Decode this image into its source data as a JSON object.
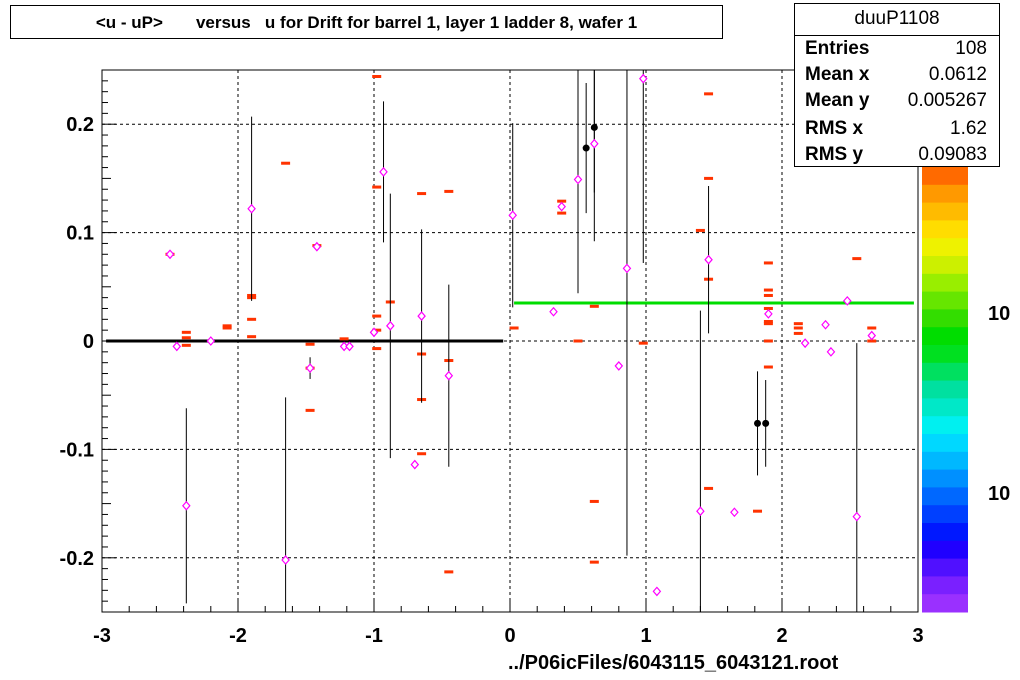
{
  "title": "<u - uP>       versus   u for Drift for barrel 1, layer 1 ladder 8, wafer 1",
  "stats": {
    "name": "duuP1108",
    "rows": [
      {
        "label": "Entries",
        "value": "108"
      },
      {
        "label": "Mean x",
        "value": "0.0612"
      },
      {
        "label": "Mean y",
        "value": "0.005267"
      },
      {
        "label": "RMS x",
        "value": "1.62"
      },
      {
        "label": "RMS y",
        "value": "0.09083"
      }
    ]
  },
  "xlabel": "../P06icFiles/6043115_6043121.root",
  "palette_labels": [
    "10",
    "10"
  ],
  "palette_colors": [
    "#ff6a00",
    "#ff9900",
    "#ffbb00",
    "#ffdd00",
    "#eef200",
    "#ccf000",
    "#99ee00",
    "#66e600",
    "#33dd00",
    "#00dd00",
    "#00e020",
    "#00e060",
    "#00e0a0",
    "#00e8c8",
    "#00f0f0",
    "#00d8ff",
    "#00b8ff",
    "#0090ff",
    "#0068ff",
    "#0040ff",
    "#0018ff",
    "#2000ff",
    "#5010ff",
    "#7a20ff",
    "#9a30ff"
  ],
  "chart_data": {
    "type": "scatter",
    "xlim": [
      -3,
      3
    ],
    "ylim": [
      -0.25,
      0.25
    ],
    "x_ticks": [
      -3,
      -2,
      -1,
      0,
      1,
      2,
      3
    ],
    "y_ticks": [
      -0.2,
      -0.1,
      0,
      0.1,
      0.2
    ],
    "x_tick_labels": [
      "-3",
      "-2",
      "-1",
      "0",
      "1",
      "2",
      "3"
    ],
    "y_tick_labels": [
      "-0.2",
      "-0.1",
      "0",
      "0.1",
      "0.2"
    ],
    "grid": true,
    "fit_lines": [
      {
        "x": [
          -2.97,
          -0.05
        ],
        "y": [
          0.0,
          0.0
        ],
        "color": "#000000"
      },
      {
        "x": [
          0.03,
          2.97
        ],
        "y": [
          0.035,
          0.035
        ],
        "color": "#00dd00"
      }
    ],
    "profile_points": [
      {
        "x": -2.5,
        "y": 0.08,
        "err": 0.0
      },
      {
        "x": -2.45,
        "y": -0.005,
        "err": 0.0
      },
      {
        "x": -2.38,
        "y": -0.152,
        "err": 0.09
      },
      {
        "x": -2.2,
        "y": 0.0,
        "err": 0.0
      },
      {
        "x": -1.9,
        "y": 0.122,
        "err": 0.085
      },
      {
        "x": -1.65,
        "y": -0.202,
        "err": 0.15
      },
      {
        "x": -1.47,
        "y": -0.025,
        "err": 0.01
      },
      {
        "x": -1.42,
        "y": 0.087,
        "err": 0.0
      },
      {
        "x": -1.22,
        "y": -0.005,
        "err": 0.0
      },
      {
        "x": -1.18,
        "y": -0.005,
        "err": 0.0
      },
      {
        "x": -1.0,
        "y": 0.008,
        "err": 0.0
      },
      {
        "x": -0.93,
        "y": 0.156,
        "err": 0.065
      },
      {
        "x": -0.88,
        "y": 0.014,
        "err": 0.122
      },
      {
        "x": -0.7,
        "y": -0.114,
        "err": 0.0
      },
      {
        "x": -0.65,
        "y": 0.023,
        "err": 0.08
      },
      {
        "x": -0.45,
        "y": -0.032,
        "err": 0.084
      },
      {
        "x": 0.02,
        "y": 0.116,
        "err": 0.085
      },
      {
        "x": 0.32,
        "y": 0.027,
        "err": 0.0
      },
      {
        "x": 0.38,
        "y": 0.124,
        "err": 0.0
      },
      {
        "x": 0.5,
        "y": 0.149,
        "err": 0.105
      },
      {
        "x": 0.62,
        "y": 0.182,
        "err": 0.09
      },
      {
        "x": 0.8,
        "y": -0.023,
        "err": 0.0
      },
      {
        "x": 0.86,
        "y": 0.067,
        "err": 0.265
      },
      {
        "x": 0.98,
        "y": 0.242,
        "err": 0.17
      },
      {
        "x": 1.08,
        "y": -0.231,
        "err": 0.0
      },
      {
        "x": 1.4,
        "y": -0.157,
        "err": 0.185
      },
      {
        "x": 1.46,
        "y": 0.075,
        "err": 0.068
      },
      {
        "x": 1.65,
        "y": -0.158,
        "err": 0.0
      },
      {
        "x": 1.9,
        "y": 0.025,
        "err": 0.0
      },
      {
        "x": 2.17,
        "y": -0.002,
        "err": 0.0
      },
      {
        "x": 2.32,
        "y": 0.015,
        "err": 0.0
      },
      {
        "x": 2.36,
        "y": -0.01,
        "err": 0.0
      },
      {
        "x": 2.48,
        "y": 0.037,
        "err": 0.0
      },
      {
        "x": 2.55,
        "y": -0.162,
        "err": 0.16
      },
      {
        "x": 2.66,
        "y": 0.005,
        "err": 0.0
      }
    ],
    "black_points": [
      {
        "x": 0.56,
        "y": 0.178,
        "err": 0.06
      },
      {
        "x": 0.62,
        "y": 0.197,
        "err": 0.06
      },
      {
        "x": 1.82,
        "y": -0.076,
        "err": 0.048
      },
      {
        "x": 1.88,
        "y": -0.076,
        "err": 0.04
      }
    ],
    "red_marks": [
      {
        "x": -2.5,
        "y": 0.08
      },
      {
        "x": -2.38,
        "y": 0.008
      },
      {
        "x": -2.38,
        "y": 0.003
      },
      {
        "x": -2.38,
        "y": -0.004
      },
      {
        "x": -2.08,
        "y": 0.014
      },
      {
        "x": -2.08,
        "y": 0.012
      },
      {
        "x": -1.9,
        "y": 0.042
      },
      {
        "x": -1.9,
        "y": 0.04
      },
      {
        "x": -1.9,
        "y": 0.02
      },
      {
        "x": -1.9,
        "y": 0.004
      },
      {
        "x": -1.65,
        "y": 0.164
      },
      {
        "x": -1.47,
        "y": -0.003
      },
      {
        "x": -1.47,
        "y": -0.025
      },
      {
        "x": -1.47,
        "y": -0.064
      },
      {
        "x": -1.42,
        "y": 0.088
      },
      {
        "x": -1.22,
        "y": 0.002
      },
      {
        "x": -0.98,
        "y": 0.244
      },
      {
        "x": -0.98,
        "y": 0.142
      },
      {
        "x": -0.98,
        "y": 0.023
      },
      {
        "x": -0.98,
        "y": 0.01
      },
      {
        "x": -0.98,
        "y": -0.007
      },
      {
        "x": -0.88,
        "y": 0.036
      },
      {
        "x": -0.65,
        "y": 0.136
      },
      {
        "x": -0.65,
        "y": -0.012
      },
      {
        "x": -0.65,
        "y": -0.054
      },
      {
        "x": -0.65,
        "y": -0.104
      },
      {
        "x": -0.45,
        "y": 0.138
      },
      {
        "x": -0.45,
        "y": -0.018
      },
      {
        "x": -0.45,
        "y": -0.213
      },
      {
        "x": 0.03,
        "y": 0.012
      },
      {
        "x": 0.38,
        "y": 0.129
      },
      {
        "x": 0.38,
        "y": 0.118
      },
      {
        "x": 0.5,
        "y": 0.0
      },
      {
        "x": 0.62,
        "y": 0.032
      },
      {
        "x": 0.62,
        "y": -0.148
      },
      {
        "x": 0.62,
        "y": -0.204
      },
      {
        "x": 0.98,
        "y": -0.002
      },
      {
        "x": 1.4,
        "y": 0.102
      },
      {
        "x": 1.46,
        "y": 0.228
      },
      {
        "x": 1.46,
        "y": 0.15
      },
      {
        "x": 1.46,
        "y": 0.057
      },
      {
        "x": 1.46,
        "y": -0.136
      },
      {
        "x": 1.82,
        "y": -0.157
      },
      {
        "x": 1.9,
        "y": 0.072
      },
      {
        "x": 1.9,
        "y": 0.047
      },
      {
        "x": 1.9,
        "y": 0.042
      },
      {
        "x": 1.9,
        "y": 0.03
      },
      {
        "x": 1.9,
        "y": 0.018
      },
      {
        "x": 1.9,
        "y": 0.016
      },
      {
        "x": 1.9,
        "y": 0.0
      },
      {
        "x": 1.9,
        "y": -0.024
      },
      {
        "x": 2.12,
        "y": 0.016
      },
      {
        "x": 2.12,
        "y": 0.012
      },
      {
        "x": 2.12,
        "y": 0.007
      },
      {
        "x": 2.55,
        "y": 0.076
      },
      {
        "x": 2.66,
        "y": 0.012
      },
      {
        "x": 2.66,
        "y": 0.0
      }
    ]
  }
}
